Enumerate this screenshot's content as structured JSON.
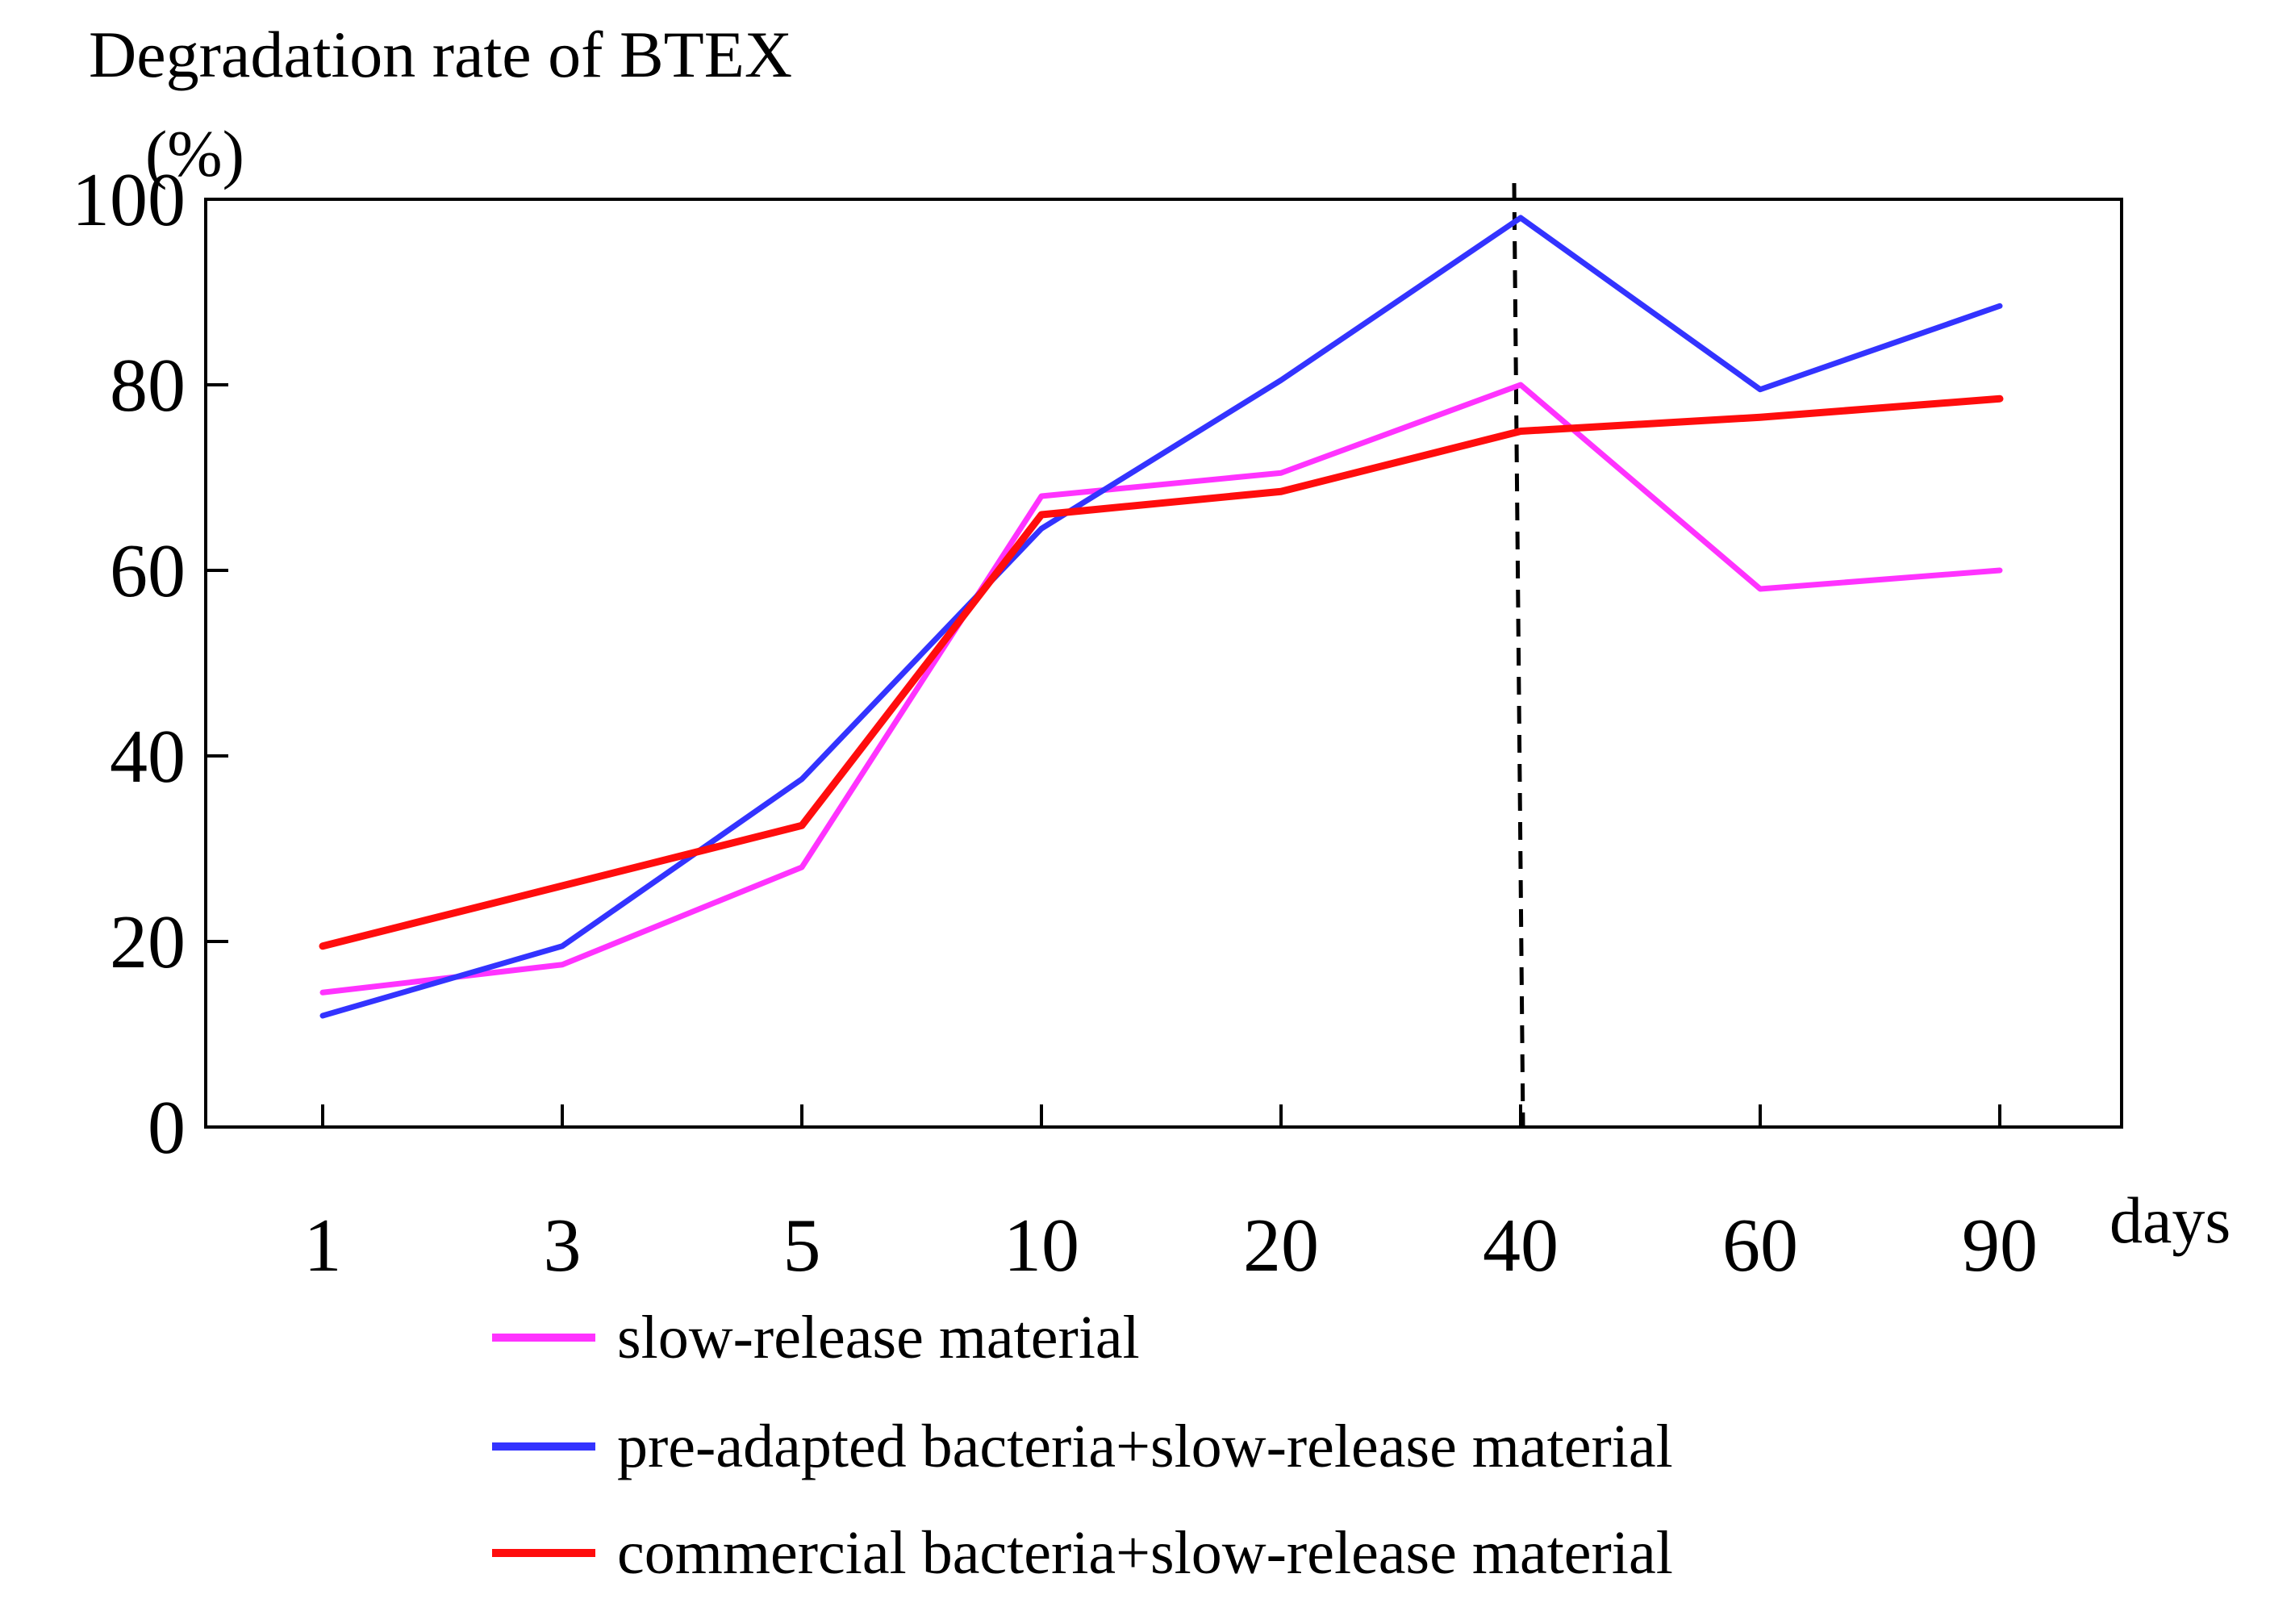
{
  "chart_data": {
    "type": "line",
    "title": "Degradation rate of BTEX",
    "ylabel": "Degradation rate of BTEX",
    "yunit": "(%)",
    "xlabel": "days",
    "categories": [
      "1",
      "3",
      "5",
      "10",
      "20",
      "40",
      "60",
      "90"
    ],
    "yticks": [
      "0",
      "20",
      "40",
      "60",
      "80",
      "100"
    ],
    "ylim": [
      0,
      100
    ],
    "grid": false,
    "reference_line": {
      "at_category": "40",
      "style": "dashed"
    },
    "legend_position": "bottom",
    "series": [
      {
        "name": "slow-release material",
        "color": "#ff33ff",
        "values": [
          14.5,
          17.5,
          28,
          68,
          70.5,
          80,
          58,
          60
        ]
      },
      {
        "name": "pre-adapted bacteria+slow-release material",
        "color": "#3333ff",
        "values": [
          12,
          19.5,
          37.5,
          64.5,
          80.5,
          98,
          79.5,
          88.5
        ]
      },
      {
        "name": "commercial bacteria+slow-release material",
        "color": "#ff0d0d",
        "values": [
          19.5,
          26,
          32.5,
          66,
          68.5,
          75,
          76.5,
          78.5
        ]
      }
    ]
  }
}
